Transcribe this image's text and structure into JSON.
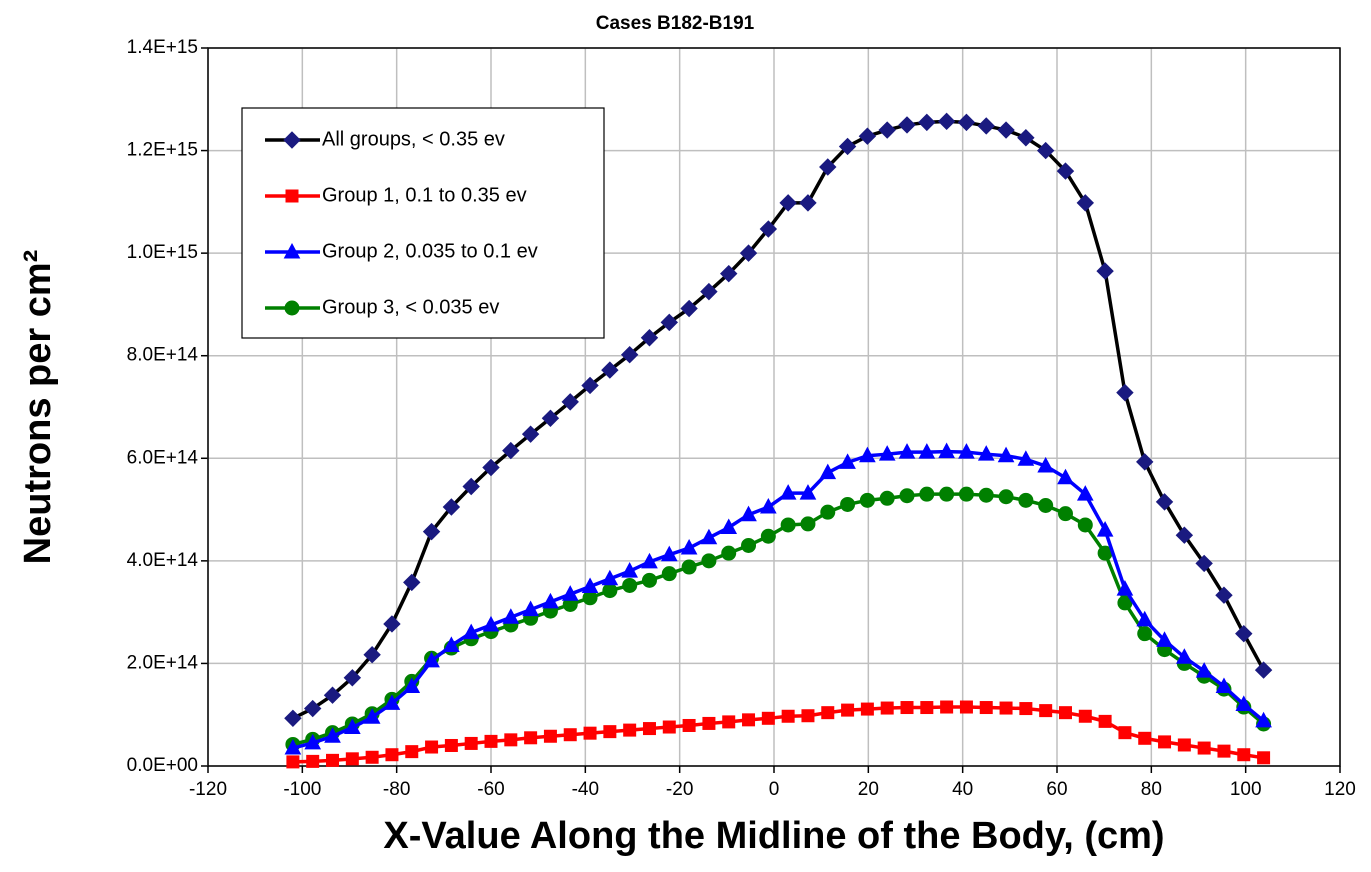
{
  "chart_data": {
    "type": "line",
    "title": "Cases B182-B191",
    "xlabel": "X-Value Along the Midline of the Body, (cm)",
    "ylabel": "Neutrons per cm²",
    "x": [
      -102,
      -97.8,
      -93.6,
      -89.4,
      -85.2,
      -81,
      -76.8,
      -72.6,
      -68.4,
      -64.2,
      -60,
      -55.8,
      -51.6,
      -47.4,
      -43.2,
      -39,
      -34.8,
      -30.6,
      -26.4,
      -22.2,
      -18,
      -13.8,
      -9.6,
      -5.4,
      -1.2,
      3,
      7.2,
      11.4,
      15.6,
      19.8,
      24,
      28.2,
      32.4,
      36.6,
      40.8,
      45,
      49.2,
      53.4,
      57.6,
      61.8,
      66,
      70.2,
      74.4,
      78.6,
      82.8,
      87,
      91.2,
      95.4,
      99.6,
      103.8
    ],
    "series": [
      {
        "name": "All groups, < 0.35 ev",
        "color": "#000000",
        "marker_color": "#1a1a80",
        "marker": "diamond",
        "values": [
          93000000000000.0,
          112000000000000.0,
          138000000000000.0,
          172000000000000.0,
          217000000000000.0,
          277000000000000.0,
          358000000000000.0,
          457000000000000.0,
          505000000000000.0,
          545000000000000.0,
          582000000000000.0,
          615000000000000.0,
          647000000000000.0,
          678000000000000.0,
          710000000000000.0,
          742000000000000.0,
          772000000000000.0,
          802000000000000.0,
          835000000000000.0,
          865000000000000.0,
          892000000000000.0,
          925000000000000.0,
          960000000000000.0,
          1000000000000000.0,
          1047000000000000.0,
          1098000000000000.0,
          1098000000000000.0,
          1168000000000000.0,
          1208000000000000.0,
          1228000000000000.0,
          1240000000000000.0,
          1250000000000000.0,
          1255000000000000.0,
          1257000000000000.0,
          1255000000000000.0,
          1248000000000000.0,
          1240000000000000.0,
          1225000000000000.0,
          1200000000000000.0,
          1160000000000000.0,
          1098000000000000.0,
          965000000000000.0,
          728000000000000.0,
          593000000000000.0,
          515000000000000.0,
          450000000000000.0,
          395000000000000.0,
          333000000000000.0,
          258000000000000.0,
          187000000000000.0
        ]
      },
      {
        "name": "Group 1, 0.1 to 0.35 ev",
        "color": "#ff0000",
        "marker_color": "#ff0000",
        "marker": "square",
        "values": [
          8000000000000.0,
          9000000000000.0,
          11000000000000.0,
          14000000000000.0,
          17000000000000.0,
          22000000000000.0,
          28000000000000.0,
          37000000000000.0,
          40000000000000.0,
          44000000000000.0,
          48000000000000.0,
          51000000000000.0,
          55000000000000.0,
          58000000000000.0,
          61000000000000.0,
          64000000000000.0,
          67000000000000.0,
          70000000000000.0,
          73000000000000.0,
          76000000000000.0,
          79000000000000.0,
          83000000000000.0,
          86000000000000.0,
          90000000000000.0,
          93000000000000.0,
          97000000000000.0,
          98000000000000.0,
          104000000000000.0,
          109000000000000.0,
          111000000000000.0,
          113000000000000.0,
          114000000000000.0,
          114000000000000.0,
          115000000000000.0,
          115000000000000.0,
          114000000000000.0,
          113000000000000.0,
          112000000000000.0,
          108000000000000.0,
          104000000000000.0,
          97000000000000.0,
          87000000000000.0,
          65000000000000.0,
          54000000000000.0,
          47000000000000.0,
          41000000000000.0,
          35000000000000.0,
          29000000000000.0,
          22000000000000.0,
          16000000000000.0
        ]
      },
      {
        "name": "Group 2, 0.035 to 0.1 ev",
        "color": "#0000ff",
        "marker_color": "#0000ff",
        "marker": "triangle",
        "values": [
          35000000000000.0,
          45000000000000.0,
          58000000000000.0,
          75000000000000.0,
          95000000000000.0,
          122000000000000.0,
          155000000000000.0,
          205000000000000.0,
          235000000000000.0,
          260000000000000.0,
          275000000000000.0,
          290000000000000.0,
          305000000000000.0,
          320000000000000.0,
          335000000000000.0,
          350000000000000.0,
          365000000000000.0,
          380000000000000.0,
          398000000000000.0,
          412000000000000.0,
          425000000000000.0,
          445000000000000.0,
          465000000000000.0,
          490000000000000.0,
          505000000000000.0,
          532000000000000.0,
          532000000000000.0,
          572000000000000.0,
          592000000000000.0,
          605000000000000.0,
          608000000000000.0,
          612000000000000.0,
          612000000000000.0,
          613000000000000.0,
          612000000000000.0,
          608000000000000.0,
          605000000000000.0,
          598000000000000.0,
          585000000000000.0,
          562000000000000.0,
          530000000000000.0,
          460000000000000.0,
          345000000000000.0,
          285000000000000.0,
          245000000000000.0,
          212000000000000.0,
          185000000000000.0,
          155000000000000.0,
          120000000000000.0,
          88000000000000.0
        ]
      },
      {
        "name": "Group 3, < 0.035 ev",
        "color": "#008000",
        "marker_color": "#008000",
        "marker": "circle",
        "values": [
          42000000000000.0,
          52000000000000.0,
          65000000000000.0,
          82000000000000.0,
          102000000000000.0,
          130000000000000.0,
          165000000000000.0,
          210000000000000.0,
          230000000000000.0,
          248000000000000.0,
          262000000000000.0,
          275000000000000.0,
          288000000000000.0,
          302000000000000.0,
          315000000000000.0,
          328000000000000.0,
          342000000000000.0,
          352000000000000.0,
          362000000000000.0,
          375000000000000.0,
          388000000000000.0,
          400000000000000.0,
          415000000000000.0,
          430000000000000.0,
          448000000000000.0,
          470000000000000.0,
          472000000000000.0,
          495000000000000.0,
          510000000000000.0,
          518000000000000.0,
          522000000000000.0,
          527000000000000.0,
          530000000000000.0,
          530000000000000.0,
          530000000000000.0,
          528000000000000.0,
          525000000000000.0,
          518000000000000.0,
          508000000000000.0,
          492000000000000.0,
          470000000000000.0,
          415000000000000.0,
          318000000000000.0,
          258000000000000.0,
          227000000000000.0,
          200000000000000.0,
          175000000000000.0,
          150000000000000.0,
          115000000000000.0,
          82000000000000.0
        ]
      }
    ],
    "xlim": [
      -120,
      120
    ],
    "xticks": [
      -120,
      -100,
      -80,
      -60,
      -40,
      -20,
      0,
      20,
      40,
      60,
      80,
      100,
      120
    ],
    "ylim": [
      0,
      1400000000000000.0
    ],
    "yticks": [
      {
        "value": 0,
        "label": "0.0E+00"
      },
      {
        "value": 200000000000000.0,
        "label": "2.0E+14"
      },
      {
        "value": 400000000000000.0,
        "label": "4.0E+14"
      },
      {
        "value": 600000000000000.0,
        "label": "6.0E+14"
      },
      {
        "value": 800000000000000.0,
        "label": "8.0E+14"
      },
      {
        "value": 1000000000000000.0,
        "label": "1.0E+15"
      },
      {
        "value": 1200000000000000.0,
        "label": "1.2E+15"
      },
      {
        "value": 1400000000000000.0,
        "label": "1.4E+15"
      }
    ],
    "grid": true,
    "legend": "upper left"
  }
}
